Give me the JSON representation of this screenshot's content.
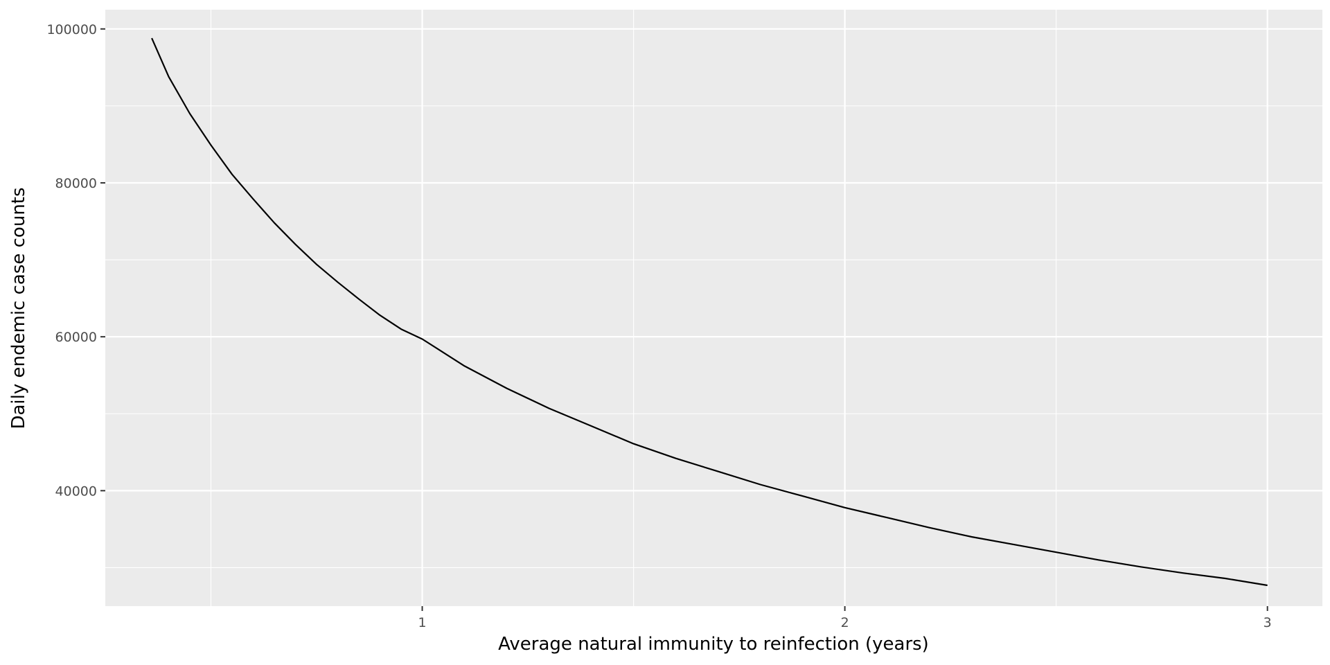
{
  "chart_data": {
    "type": "line",
    "title": "",
    "xlabel": "Average natural immunity to reinfection (years)",
    "ylabel": "Daily endemic case counts",
    "xlim": [
      0.25,
      3.13
    ],
    "ylim": [
      25000,
      102500
    ],
    "x_ticks": [
      1,
      2,
      3
    ],
    "x_tick_labels": [
      "1",
      "2",
      "3"
    ],
    "y_ticks": [
      40000,
      60000,
      80000,
      100000
    ],
    "y_tick_labels": [
      "40000",
      "60000",
      "80000",
      "100000"
    ],
    "grid": true,
    "legend": "none",
    "series": [
      {
        "x": [
          0.36,
          0.4,
          0.45,
          0.5,
          0.55,
          0.6,
          0.65,
          0.7,
          0.75,
          0.8,
          0.85,
          0.9,
          0.95,
          1.0,
          1.1,
          1.2,
          1.3,
          1.4,
          1.5,
          1.6,
          1.7,
          1.8,
          1.9,
          2.0,
          2.1,
          2.2,
          2.3,
          2.4,
          2.5,
          2.6,
          2.7,
          2.8,
          2.9,
          3.0
        ],
        "values": [
          98800,
          93800,
          89000,
          84900,
          81100,
          77900,
          74800,
          72000,
          69400,
          67100,
          64900,
          62800,
          61000,
          59700,
          56200,
          53300,
          50700,
          48400,
          46100,
          44200,
          42500,
          40800,
          39300,
          37800,
          36500,
          35200,
          34000,
          33000,
          32000,
          31000,
          30100,
          29300,
          28600,
          27700
        ]
      }
    ]
  },
  "colors": {
    "panel_background": "#ebebeb",
    "grid_major": "#ffffff",
    "line": "#000000"
  }
}
